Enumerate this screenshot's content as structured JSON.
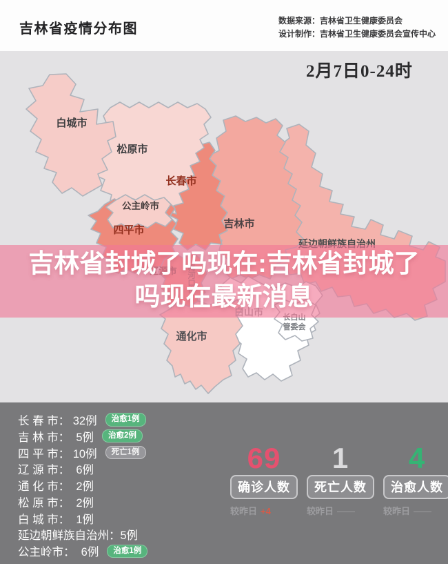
{
  "header": {
    "title": "吉林省疫情分布图",
    "source_line1": "数据来源：吉林省卫生健康委员会",
    "source_line2": "设计制作：吉林省卫生健康委员会宣传中心"
  },
  "map": {
    "date_label": "2月7日0-24时",
    "background": "#e3e2e4",
    "border_color": "#aeb3bb",
    "regions": [
      {
        "id": "yanbian",
        "label": "延边朝鲜族自治州",
        "fill": "#f4b3ac",
        "label_color": "#4a4a4c",
        "font_size": 14
      },
      {
        "id": "jilin",
        "label": "吉林市",
        "fill": "#f3a89f",
        "label_color": "#4c4244",
        "font_size": 15
      },
      {
        "id": "changchun",
        "label": "长春市",
        "fill": "#ee8a7b",
        "label_color": "#93301f",
        "font_size": 15
      },
      {
        "id": "songyuan",
        "label": "松原市",
        "fill": "#f8d7d3",
        "label_color": "#3f3f41",
        "font_size": 15
      },
      {
        "id": "baicheng",
        "label": "白城市",
        "fill": "#f6ccc8",
        "label_color": "#3f3f41",
        "font_size": 15
      },
      {
        "id": "siping",
        "label": "四平市",
        "fill": "#ee8a7b",
        "label_color": "#93301f",
        "font_size": 15
      },
      {
        "id": "gongzhuling",
        "label": "公主岭市",
        "fill": "#f7cfca",
        "label_color": "#473e3e",
        "font_size": 13.5
      },
      {
        "id": "liaoyuan",
        "label": "辽源市",
        "fill": "#f0988b",
        "label_color": "#7c5a55",
        "font_size": 13
      },
      {
        "id": "baishan",
        "label": "白山市",
        "fill": "#ffffff",
        "label_color": "#94969b",
        "font_size": 14
      },
      {
        "id": "changbaishan",
        "label": "长白山管委会",
        "label_lines": [
          "长白山",
          "管委会"
        ],
        "fill": "#ffffff",
        "label_color": "#7d8085",
        "font_size": 11
      },
      {
        "id": "tonghua",
        "label": "通化市",
        "fill": "#f6c9c4",
        "label_color": "#4c4c50",
        "font_size": 15
      },
      {
        "id": "meihekou",
        "label": "梅河口市",
        "label_color": "#8a6f6b",
        "font_size": 11,
        "vertical": true
      }
    ]
  },
  "headline": {
    "line1": "吉林省封城了吗现在:吉林省封城了",
    "line2": "吗现在最新消息"
  },
  "cases_list": {
    "rows": [
      {
        "text": "长 春 市： 32例",
        "badge": "治愈1例",
        "badge_type": "green"
      },
      {
        "text": "吉 林 市：  5例",
        "badge": "治愈2例",
        "badge_type": "green"
      },
      {
        "text": "四 平 市： 10例",
        "badge": "死亡1例",
        "badge_type": "gray"
      },
      {
        "text": "辽 源 市：  6例"
      },
      {
        "text": "通 化 市：  2例"
      },
      {
        "text": "松 原 市：  2例"
      },
      {
        "text": "白 城 市：  1例"
      },
      {
        "text": "延边朝鲜族自治州：5例"
      },
      {
        "text": "公主岭市：  6例",
        "badge": "治愈1例",
        "badge_type": "green"
      }
    ]
  },
  "summary": {
    "cards": [
      {
        "value": "69",
        "value_color": "#e5516f",
        "label": "确诊人数",
        "delta_prefix": "较昨日",
        "delta": "+4",
        "delta_color": "#d85a47"
      },
      {
        "value": "1",
        "value_color": "#dbdbdd",
        "label": "死亡人数",
        "delta_prefix": "较昨日",
        "delta": "——",
        "delta_color": "#939395"
      },
      {
        "value": "4",
        "value_color": "#35b374",
        "label": "治愈人数",
        "delta_prefix": "较昨日",
        "delta": "——",
        "delta_color": "#939395"
      }
    ]
  },
  "colors": {
    "header_bg": "#fdfdfd",
    "map_bg": "#e3e2e4",
    "panel_bg": "#79797b",
    "overlay": "rgba(240,120,150,0.62)"
  }
}
